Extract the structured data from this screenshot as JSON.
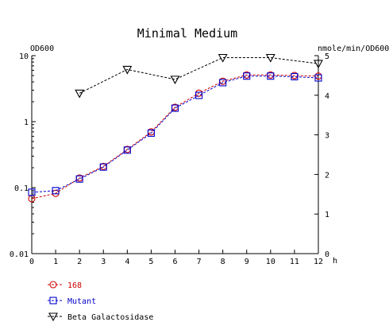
{
  "chart_data": {
    "type": "line",
    "title": "Minimal Medium",
    "left_axis": {
      "label": "OD600",
      "scale": "log",
      "range": [
        0.01,
        10
      ],
      "ticks": [
        {
          "value": 10,
          "label": "10"
        },
        {
          "value": 1,
          "label": "1"
        },
        {
          "value": 0.1,
          "label": "0.1"
        },
        {
          "value": 0.01,
          "label": "0.01"
        }
      ]
    },
    "right_axis": {
      "label": "nmole/min/OD600",
      "scale": "linear",
      "range": [
        0,
        5
      ],
      "ticks": [
        {
          "value": 0,
          "label": "0"
        },
        {
          "value": 1,
          "label": "1"
        },
        {
          "value": 2,
          "label": "2"
        },
        {
          "value": 3,
          "label": "3"
        },
        {
          "value": 4,
          "label": "4"
        },
        {
          "value": 5,
          "label": "5"
        }
      ]
    },
    "x_axis": {
      "label": "h",
      "range": [
        0,
        12
      ],
      "ticks": [
        {
          "value": 0,
          "label": "0"
        },
        {
          "value": 1,
          "label": "1"
        },
        {
          "value": 2,
          "label": "2"
        },
        {
          "value": 3,
          "label": "3"
        },
        {
          "value": 4,
          "label": "4"
        },
        {
          "value": 5,
          "label": "5"
        },
        {
          "value": 6,
          "label": "6"
        },
        {
          "value": 7,
          "label": "7"
        },
        {
          "value": 8,
          "label": "8"
        },
        {
          "value": 9,
          "label": "9"
        },
        {
          "value": 10,
          "label": "10"
        },
        {
          "value": 11,
          "label": "11"
        },
        {
          "value": 12,
          "label": "12"
        }
      ]
    },
    "grid": false,
    "legend_position": "bottom-left",
    "series": [
      {
        "name": "168",
        "axis": "left",
        "marker": "circle",
        "color": "#cc0000",
        "x": [
          0,
          1,
          2,
          3,
          4,
          5,
          6,
          7,
          8,
          9,
          10,
          11,
          12
        ],
        "y": [
          0.068,
          0.082,
          0.14,
          0.21,
          0.38,
          0.7,
          1.65,
          2.7,
          4.1,
          5.1,
          5.1,
          5.0,
          4.9
        ]
      },
      {
        "name": "Mutant",
        "axis": "left",
        "marker": "square",
        "color": "#0000cc",
        "x": [
          0,
          1,
          2,
          3,
          4,
          5,
          6,
          7,
          8,
          9,
          10,
          11,
          12
        ],
        "y": [
          0.085,
          0.09,
          0.135,
          0.205,
          0.37,
          0.67,
          1.6,
          2.5,
          3.9,
          4.9,
          4.9,
          4.8,
          4.6
        ]
      },
      {
        "name": "Beta Galactosidase",
        "axis": "right",
        "marker": "triangle-down",
        "color": "#000000",
        "x": [
          2,
          4,
          6,
          8,
          10,
          12
        ],
        "y": [
          4.05,
          4.65,
          4.4,
          4.95,
          4.95,
          4.8
        ]
      }
    ]
  }
}
